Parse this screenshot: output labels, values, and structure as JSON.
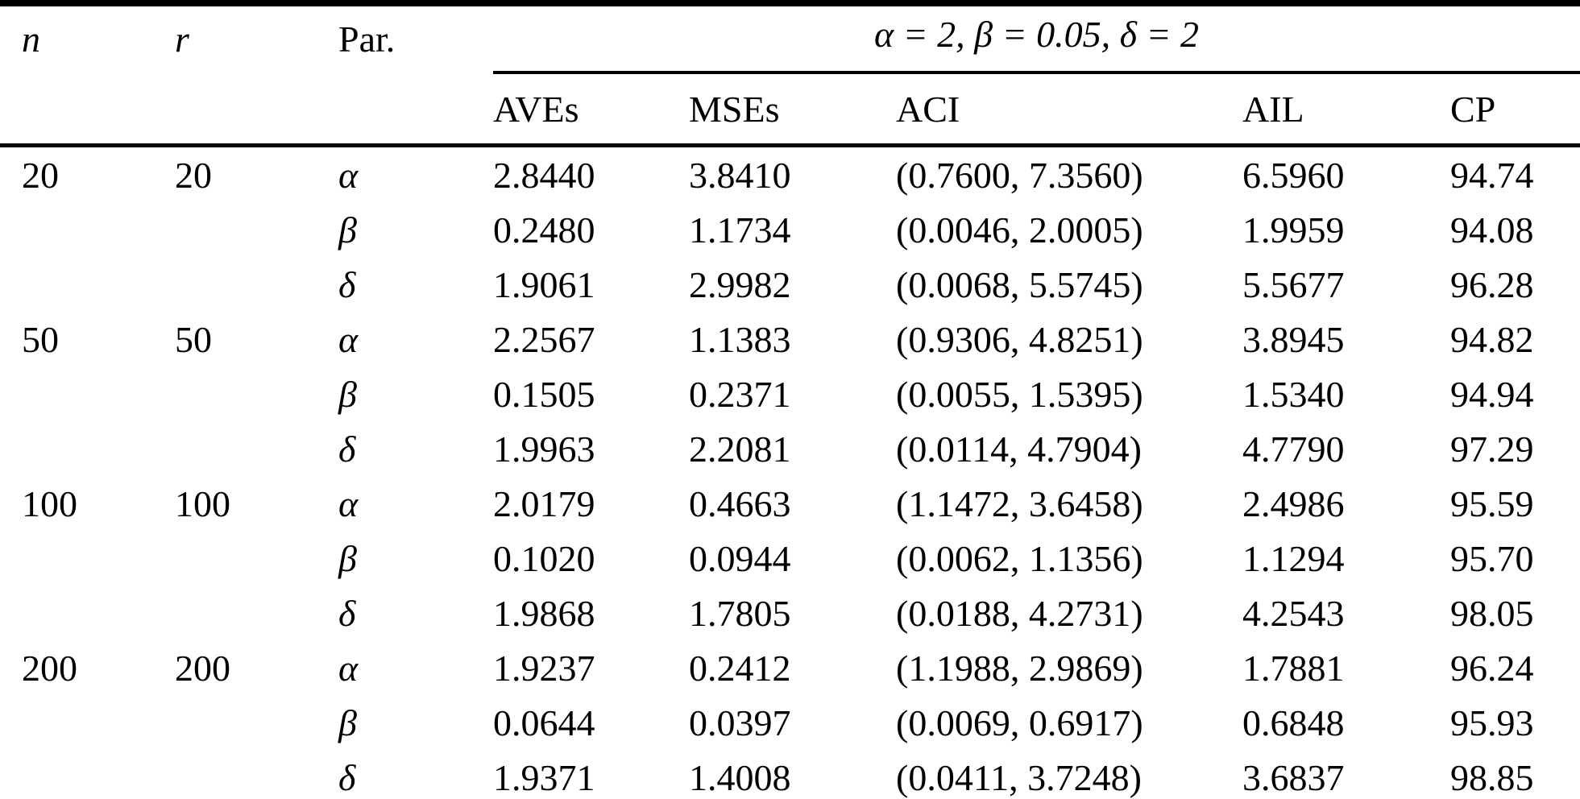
{
  "colors": {
    "background": "#ffffff",
    "text": "#000000",
    "rule": "#000000"
  },
  "table": {
    "headers": {
      "n": "n",
      "r": "r",
      "par": "Par.",
      "span": "α = 2, β = 0.05, δ = 2",
      "sub": {
        "aves": "AVEs",
        "mses": "MSEs",
        "aci": "ACI",
        "ail": "AIL",
        "cp": "CP"
      }
    },
    "rows": [
      {
        "n": "20",
        "r": "20",
        "par": "α",
        "aves": "2.8440",
        "mses": "3.8410",
        "aci": "(0.7600, 7.3560)",
        "ail": "6.5960",
        "cp": "94.74"
      },
      {
        "n": "",
        "r": "",
        "par": "β",
        "aves": "0.2480",
        "mses": "1.1734",
        "aci": "(0.0046, 2.0005)",
        "ail": "1.9959",
        "cp": "94.08"
      },
      {
        "n": "",
        "r": "",
        "par": "δ",
        "aves": "1.9061",
        "mses": "2.9982",
        "aci": "(0.0068, 5.5745)",
        "ail": "5.5677",
        "cp": "96.28"
      },
      {
        "n": "50",
        "r": "50",
        "par": "α",
        "aves": "2.2567",
        "mses": "1.1383",
        "aci": "(0.9306, 4.8251)",
        "ail": "3.8945",
        "cp": "94.82"
      },
      {
        "n": "",
        "r": "",
        "par": "β",
        "aves": "0.1505",
        "mses": "0.2371",
        "aci": "(0.0055, 1.5395)",
        "ail": "1.5340",
        "cp": "94.94"
      },
      {
        "n": "",
        "r": "",
        "par": "δ",
        "aves": "1.9963",
        "mses": "2.2081",
        "aci": "(0.0114, 4.7904)",
        "ail": "4.7790",
        "cp": "97.29"
      },
      {
        "n": "100",
        "r": "100",
        "par": "α",
        "aves": "2.0179",
        "mses": "0.4663",
        "aci": "(1.1472, 3.6458)",
        "ail": "2.4986",
        "cp": "95.59"
      },
      {
        "n": "",
        "r": "",
        "par": "β",
        "aves": "0.1020",
        "mses": "0.0944",
        "aci": "(0.0062, 1.1356)",
        "ail": "1.1294",
        "cp": "95.70"
      },
      {
        "n": "",
        "r": "",
        "par": "δ",
        "aves": "1.9868",
        "mses": "1.7805",
        "aci": "(0.0188, 4.2731)",
        "ail": "4.2543",
        "cp": "98.05"
      },
      {
        "n": "200",
        "r": "200",
        "par": "α",
        "aves": "1.9237",
        "mses": "0.2412",
        "aci": "(1.1988, 2.9869)",
        "ail": "1.7881",
        "cp": "96.24"
      },
      {
        "n": "",
        "r": "",
        "par": "β",
        "aves": "0.0644",
        "mses": "0.0397",
        "aci": "(0.0069, 0.6917)",
        "ail": "0.6848",
        "cp": "95.93"
      },
      {
        "n": "",
        "r": "",
        "par": "δ",
        "aves": "1.9371",
        "mses": "1.4008",
        "aci": "(0.0411, 3.7248)",
        "ail": "3.6837",
        "cp": "98.85"
      }
    ]
  }
}
